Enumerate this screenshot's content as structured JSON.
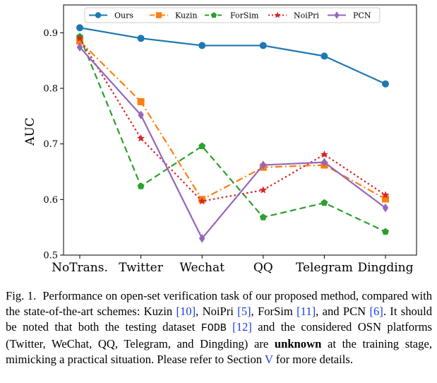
{
  "chart_data": {
    "type": "line",
    "categories": [
      "NoTrans.",
      "Twitter",
      "Wechat",
      "QQ",
      "Telegram",
      "Dingding"
    ],
    "ylabel": "AUC",
    "xlabel": "",
    "ylim": [
      0.5,
      0.95
    ],
    "yticks": [
      "0.5",
      "0.6",
      "0.7",
      "0.8",
      "0.9"
    ],
    "legend_position": "top",
    "series": [
      {
        "name": "Ours",
        "color": "#1f77b4",
        "style": "solid",
        "marker": "circle",
        "values": [
          0.909,
          0.89,
          0.877,
          0.877,
          0.858,
          0.808
        ]
      },
      {
        "name": "Kuzin",
        "color": "#ff7f0e",
        "style": "dashdot",
        "marker": "square",
        "values": [
          0.885,
          0.776,
          0.6,
          0.658,
          0.662,
          0.601
        ]
      },
      {
        "name": "ForSim",
        "color": "#2ca02c",
        "style": "dashed",
        "marker": "pentagon",
        "values": [
          0.893,
          0.624,
          0.696,
          0.568,
          0.594,
          0.542
        ]
      },
      {
        "name": "NoiPri",
        "color": "#d62728",
        "style": "dotted",
        "marker": "star",
        "values": [
          0.89,
          0.71,
          0.597,
          0.617,
          0.681,
          0.608
        ]
      },
      {
        "name": "PCN",
        "color": "#9467bd",
        "style": "solid",
        "marker": "diamond",
        "values": [
          0.874,
          0.752,
          0.53,
          0.662,
          0.667,
          0.585
        ]
      }
    ]
  },
  "caption": {
    "label": "Fig. 1.",
    "t1": "Performance on open-set verification task of our proposed method, compared with the state-of-the-art schemes: Kuzin ",
    "r1": "[10]",
    "t2": ", NoiPri ",
    "r2": "[5]",
    "t3": ", ForSim ",
    "r3": "[11]",
    "t4": ", and PCN ",
    "r4": "[6]",
    "t5": ". It should be noted that both the testing dataset ",
    "dataset": "FODB",
    "t6": " ",
    "r5": "[12]",
    "t7": " and the considered OSN platforms (Twitter, WeChat, QQ, Telegram, and Dingding) are ",
    "bold": "unknown",
    "t8": " at the training stage, mimicking a practical situation. Please refer to Section ",
    "r6": "V",
    "t9": " for more details."
  }
}
